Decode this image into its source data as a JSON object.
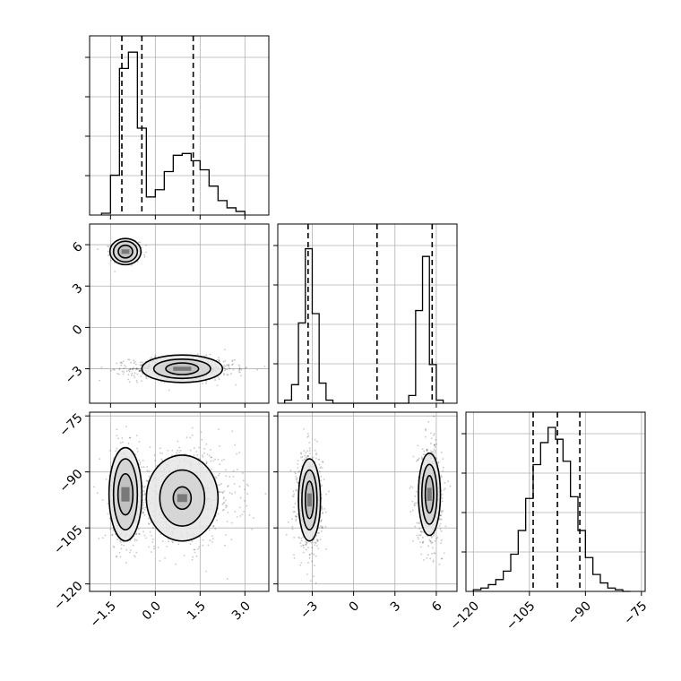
{
  "chart_data": {
    "type": "corner",
    "grid": true,
    "params": [
      {
        "id": "p1",
        "range": [
          -2.2,
          3.8
        ],
        "ticks": [
          -1.5,
          0.0,
          1.5,
          3.0
        ],
        "tick_labels": [
          "−1.5",
          "0.0",
          "1.5",
          "3.0"
        ],
        "quantiles": [
          -1.12,
          -0.45,
          1.27
        ]
      },
      {
        "id": "p2",
        "range": [
          -5.5,
          7.5
        ],
        "ticks": [
          -3,
          0,
          3,
          6
        ],
        "tick_labels": [
          "−3",
          "0",
          "3",
          "6"
        ],
        "quantiles": [
          -3.3,
          1.7,
          5.7
        ]
      },
      {
        "id": "p3",
        "range": [
          -122,
          -74
        ],
        "ticks": [
          -120,
          -105,
          -90,
          -75
        ],
        "tick_labels": [
          "−120",
          "−105",
          "−90",
          "−75"
        ],
        "quantiles": [
          -104,
          -97.5,
          -91.5
        ]
      }
    ],
    "histograms": [
      {
        "param": "p1",
        "bins": [
          -1.8,
          -1.5,
          -1.2,
          -0.9,
          -0.6,
          -0.3,
          0.0,
          0.3,
          0.6,
          0.9,
          1.2,
          1.5,
          1.8,
          2.1,
          2.4,
          2.7,
          3.0
        ],
        "counts": [
          0.01,
          0.22,
          0.81,
          0.9,
          0.48,
          0.1,
          0.14,
          0.24,
          0.33,
          0.34,
          0.3,
          0.25,
          0.16,
          0.08,
          0.04,
          0.02
        ]
      },
      {
        "param": "p2",
        "bins": [
          -5.0,
          -4.5,
          -4.0,
          -3.5,
          -3.0,
          -2.5,
          -2.0,
          -1.5,
          4.0,
          4.5,
          5.0,
          5.5,
          6.0,
          6.5
        ],
        "counts": [
          0.02,
          0.12,
          0.52,
          1.0,
          0.58,
          0.13,
          0.02,
          0,
          0.05,
          0.6,
          0.95,
          0.25,
          0.02
        ],
        "ylim": [
          0,
          1.16
        ]
      },
      {
        "param": "p3",
        "bins": [
          -120,
          -118,
          -116,
          -114,
          -112,
          -110,
          -108,
          -106,
          -104,
          -102,
          -100,
          -98,
          -96,
          -94,
          -92,
          -90,
          -88,
          -86,
          -84,
          -82,
          -80,
          -78
        ],
        "counts": [
          0.01,
          0.02,
          0.04,
          0.07,
          0.12,
          0.22,
          0.36,
          0.55,
          0.75,
          0.88,
          0.97,
          0.9,
          0.77,
          0.56,
          0.36,
          0.2,
          0.1,
          0.05,
          0.02,
          0.01,
          0.0
        ],
        "ylim": [
          0,
          1.06
        ]
      }
    ],
    "scatter_2d": [
      {
        "x_param": "p1",
        "y_param": "p2",
        "modes": [
          {
            "cx": -1.0,
            "cy": 5.5,
            "sx": 0.2,
            "sy": 0.3,
            "n": 600
          },
          {
            "cx": 0.9,
            "cy": -3.0,
            "sx": 0.75,
            "sy": 0.35,
            "n": 900
          }
        ],
        "contours": [
          {
            "cx": -1.0,
            "cy": 5.5,
            "levels": [
              [
                0.24,
                0.46
              ],
              [
                0.4,
                0.75
              ],
              [
                0.52,
                0.95
              ]
            ]
          },
          {
            "cx": 0.9,
            "cy": -3.0,
            "levels": [
              [
                0.55,
                0.42
              ],
              [
                0.95,
                0.7
              ],
              [
                1.35,
                1.0
              ]
            ]
          }
        ]
      },
      {
        "x_param": "p1",
        "y_param": "p3",
        "modes": [
          {
            "cx": -1.0,
            "cy": -96.0,
            "sx": 0.22,
            "sy": 5.5,
            "n": 700
          },
          {
            "cx": 0.9,
            "cy": -97.0,
            "sx": 0.8,
            "sy": 5.5,
            "n": 900
          }
        ],
        "contours": [
          {
            "cx": -1.0,
            "cy": -96.0,
            "levels": [
              [
                0.25,
                5.5
              ],
              [
                0.4,
                9.5
              ],
              [
                0.55,
                12.5
              ]
            ]
          },
          {
            "cx": 0.9,
            "cy": -97.0,
            "levels": [
              [
                0.3,
                3.0
              ],
              [
                0.75,
                7.5
              ],
              [
                1.2,
                11.5
              ]
            ]
          }
        ]
      },
      {
        "x_param": "p2",
        "y_param": "p3",
        "modes": [
          {
            "cx": -3.2,
            "cy": -97.5,
            "sx": 0.4,
            "sy": 5.5,
            "n": 750
          },
          {
            "cx": 5.5,
            "cy": -96.0,
            "sx": 0.4,
            "sy": 5.5,
            "n": 750
          }
        ],
        "contours": [
          {
            "cx": -3.2,
            "cy": -97.5,
            "levels": [
              [
                0.3,
                5.0
              ],
              [
                0.55,
                8.0
              ],
              [
                0.8,
                11.0
              ]
            ]
          },
          {
            "cx": 5.5,
            "cy": -96.0,
            "levels": [
              [
                0.3,
                5.0
              ],
              [
                0.55,
                8.0
              ],
              [
                0.8,
                11.0
              ]
            ]
          }
        ]
      }
    ]
  }
}
